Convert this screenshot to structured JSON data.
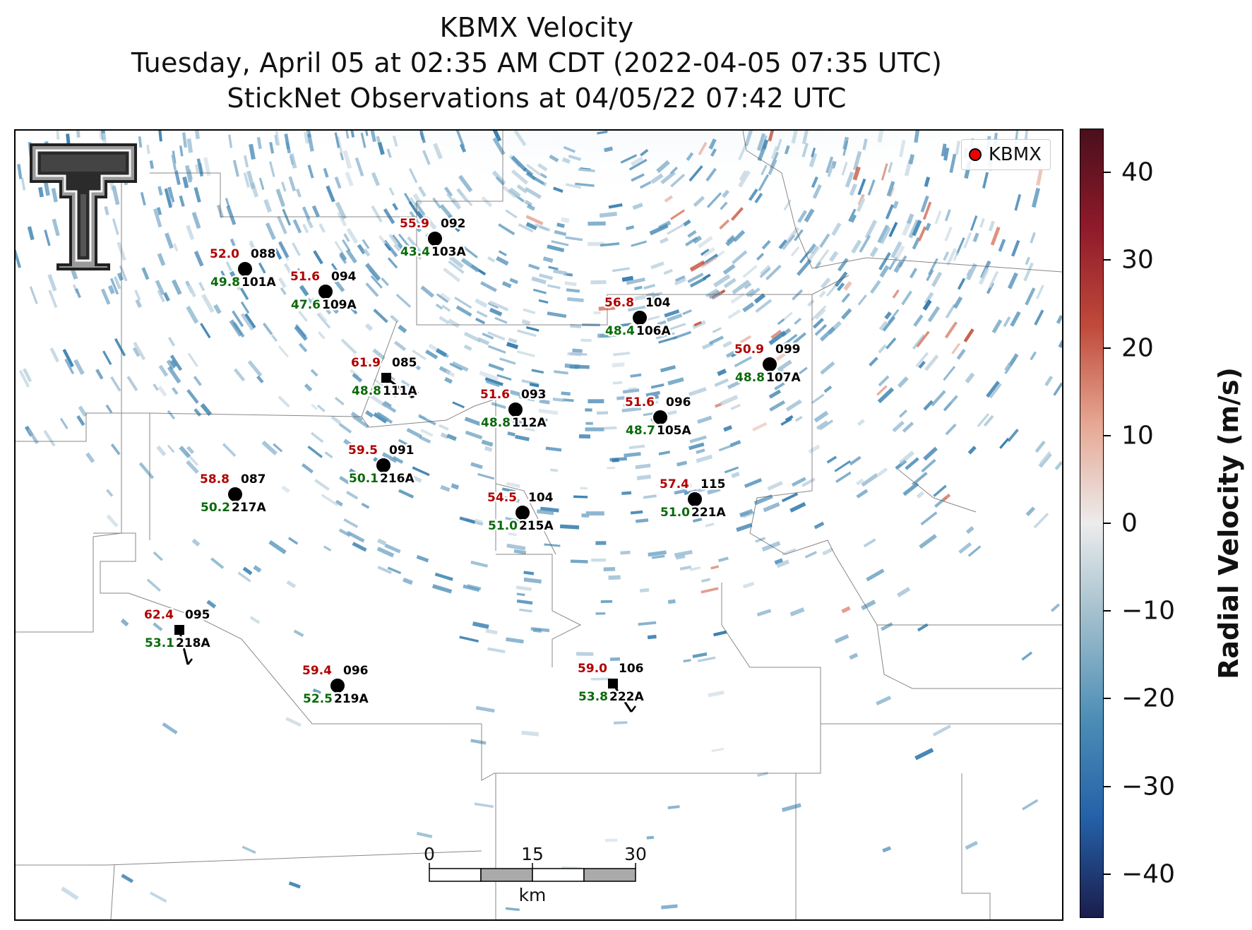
{
  "title": {
    "line1": "KBMX Velocity",
    "line2": "Tuesday, April 05 at 02:35 AM CDT (2022-04-05 07:35 UTC)",
    "line3": "StickNet Observations at 04/05/22 07:42 UTC"
  },
  "legend": {
    "label": "KBMX",
    "marker_color": "#e00000"
  },
  "colorbar": {
    "title": "Radial Velocity (m/s)",
    "ticks": [
      "40",
      "30",
      "20",
      "10",
      "0",
      "−10",
      "−20",
      "−30",
      "−40"
    ],
    "colors": [
      "#4a0f1c",
      "#8f1a2a",
      "#c04a3a",
      "#e6a894",
      "#ececec",
      "#9dbccb",
      "#4b8db6",
      "#2460a8",
      "#1a1d4c"
    ]
  },
  "scale_bar": {
    "labels": [
      "0",
      "15",
      "30"
    ],
    "unit": "km"
  },
  "logo": {
    "text": "Texas Tech Double T"
  },
  "stations": [
    {
      "id": "101A",
      "red": "52.0",
      "dir": "088",
      "green": "49.8",
      "shape": "circle"
    },
    {
      "id": "109A",
      "red": "51.6",
      "dir": "094",
      "green": "47.6",
      "shape": "circle"
    },
    {
      "id": "103A",
      "red": "55.9",
      "dir": "092",
      "green": "43.4",
      "shape": "circle"
    },
    {
      "id": "106A",
      "red": "56.8",
      "dir": "104",
      "green": "48.4",
      "shape": "circle"
    },
    {
      "id": "107A",
      "red": "50.9",
      "dir": "099",
      "green": "48.8",
      "shape": "circle"
    },
    {
      "id": "111A",
      "red": "61.9",
      "dir": "085",
      "green": "48.8",
      "shape": "square"
    },
    {
      "id": "112A",
      "red": "51.6",
      "dir": "093",
      "green": "48.8",
      "shape": "circle"
    },
    {
      "id": "105A",
      "red": "51.6",
      "dir": "096",
      "green": "48.7",
      "shape": "circle"
    },
    {
      "id": "216A",
      "red": "59.5",
      "dir": "091",
      "green": "50.1",
      "shape": "circle"
    },
    {
      "id": "217A",
      "red": "58.8",
      "dir": "087",
      "green": "50.2",
      "shape": "circle"
    },
    {
      "id": "215A",
      "red": "54.5",
      "dir": "104",
      "green": "51.0",
      "shape": "circle"
    },
    {
      "id": "221A",
      "red": "57.4",
      "dir": "115",
      "green": "51.0",
      "shape": "circle"
    },
    {
      "id": "218A",
      "red": "62.4",
      "dir": "095",
      "green": "53.1",
      "shape": "square"
    },
    {
      "id": "219A",
      "red": "59.4",
      "dir": "096",
      "green": "52.5",
      "shape": "circle"
    },
    {
      "id": "222A",
      "red": "59.0",
      "dir": "106",
      "green": "53.8",
      "shape": "square"
    }
  ]
}
